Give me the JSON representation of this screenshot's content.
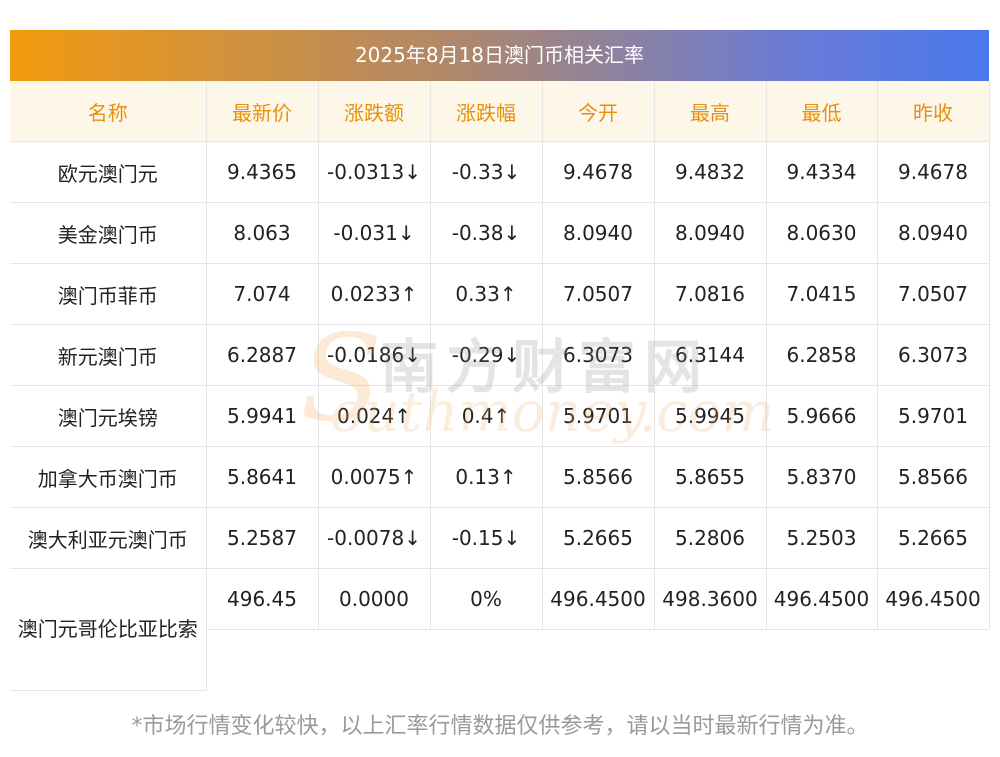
{
  "title": "2025年8月18日澳门币相关汇率",
  "headers": [
    "名称",
    "最新价",
    "涨跌额",
    "涨跌幅",
    "今开",
    "最高",
    "最低",
    "昨收"
  ],
  "rows": [
    {
      "name": "欧元澳门元",
      "latest": "9.4365",
      "change": "-0.0313↓",
      "pct": "-0.33↓",
      "open": "9.4678",
      "high": "9.4832",
      "low": "9.4334",
      "prev": "9.4678",
      "trend": "down"
    },
    {
      "name": "美金澳门币",
      "latest": "8.063",
      "change": "-0.031↓",
      "pct": "-0.38↓",
      "open": "8.0940",
      "high": "8.0940",
      "low": "8.0630",
      "prev": "8.0940",
      "trend": "down"
    },
    {
      "name": "澳门币菲币",
      "latest": "7.074",
      "change": "0.0233↑",
      "pct": "0.33↑",
      "open": "7.0507",
      "high": "7.0816",
      "low": "7.0415",
      "prev": "7.0507",
      "trend": "up"
    },
    {
      "name": "新元澳门币",
      "latest": "6.2887",
      "change": "-0.0186↓",
      "pct": "-0.29↓",
      "open": "6.3073",
      "high": "6.3144",
      "low": "6.2858",
      "prev": "6.3073",
      "trend": "down"
    },
    {
      "name": "澳门元埃镑",
      "latest": "5.9941",
      "change": "0.024↑",
      "pct": "0.4↑",
      "open": "5.9701",
      "high": "5.9945",
      "low": "5.9666",
      "prev": "5.9701",
      "trend": "up"
    },
    {
      "name": "加拿大币澳门币",
      "latest": "5.8641",
      "change": "0.0075↑",
      "pct": "0.13↑",
      "open": "5.8566",
      "high": "5.8655",
      "low": "5.8370",
      "prev": "5.8566",
      "trend": "up"
    },
    {
      "name": "澳大利亚元澳门币",
      "latest": "5.2587",
      "change": "-0.0078↓",
      "pct": "-0.15↓",
      "open": "5.2665",
      "high": "5.2806",
      "low": "5.2503",
      "prev": "5.2665",
      "trend": "down"
    },
    {
      "name": "澳门元哥伦比亚比索",
      "latest": "496.45",
      "change": "0.0000",
      "pct": "0%",
      "open": "496.4500",
      "high": "498.3600",
      "low": "496.4500",
      "prev": "496.4500",
      "trend": "flat"
    }
  ],
  "watermark": {
    "cn": "南方财富网",
    "en": "outhmoney.com",
    "s": "S"
  },
  "footnote": "*市场行情变化较快，以上汇率行情数据仅供参考，请以当时最新行情为准。",
  "colors": {
    "up": "#e8131c",
    "down": "#0a8a0a",
    "header_text": "#e8900c",
    "header_bg": "#fdf7ea"
  }
}
